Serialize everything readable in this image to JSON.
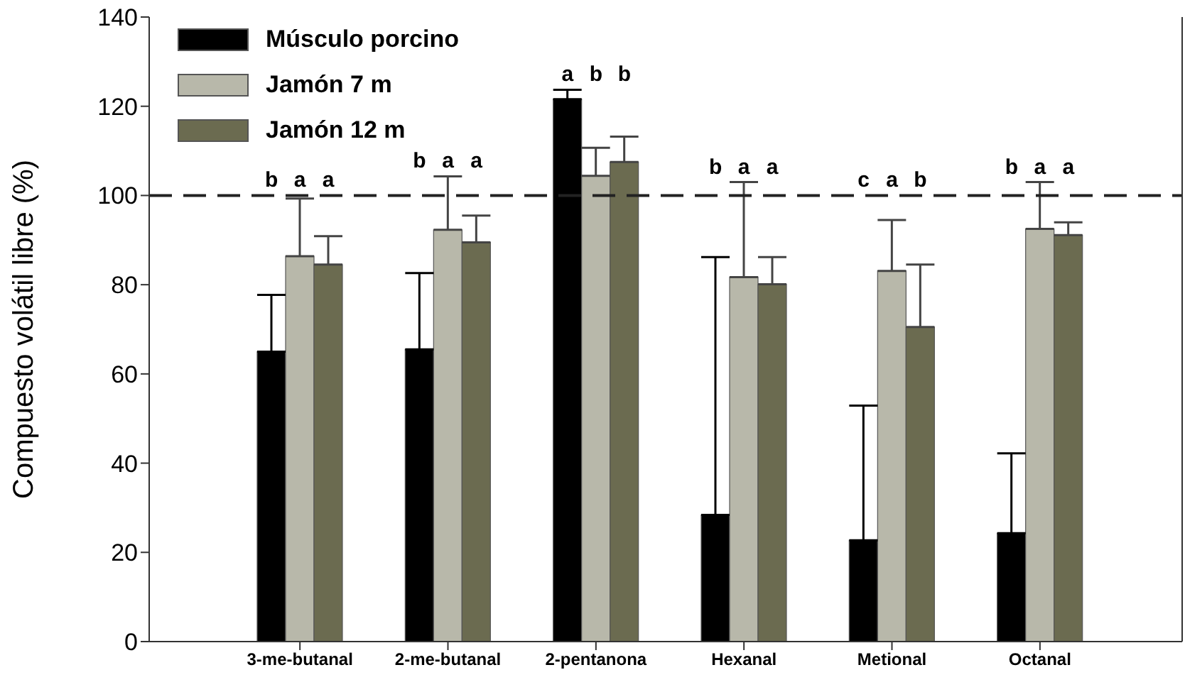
{
  "chart_data": {
    "type": "bar",
    "ylabel": "Compuesto volátil libre (%)",
    "categories": [
      "3-me-butanal",
      "2-me-butanal",
      "2-pentanona",
      "Hexanal",
      "Metional",
      "Octanal"
    ],
    "series": [
      {
        "name": "Músculo porcino",
        "color": "#000000",
        "values": [
          65,
          65.5,
          121.6,
          28.4,
          22.7,
          24.3
        ],
        "errors": [
          [
            65,
            77.7
          ],
          [
            65.5,
            82.6
          ],
          [
            121.6,
            123.7
          ],
          [
            28.4,
            86.2
          ],
          [
            22.7,
            52.9
          ],
          [
            24.3,
            42.2
          ]
        ]
      },
      {
        "name": "Jamón 7 m",
        "color": "#b8b8aa",
        "values": [
          86.4,
          92.3,
          104.4,
          81.7,
          83.1,
          92.5
        ],
        "errors": [
          [
            86.4,
            99.3
          ],
          [
            92.3,
            104.3
          ],
          [
            104.4,
            110.7
          ],
          [
            81.7,
            103
          ],
          [
            83.1,
            94.5
          ],
          [
            92.5,
            103
          ]
        ]
      },
      {
        "name": "Jamón 12 m",
        "color": "#6b6b50",
        "values": [
          84.5,
          89.5,
          107.5,
          80.1,
          70.5,
          91.1
        ],
        "errors": [
          [
            84.5,
            90.9
          ],
          [
            89.5,
            95.5
          ],
          [
            107.5,
            113.2
          ],
          [
            80.1,
            86.2
          ],
          [
            70.5,
            84.5
          ],
          [
            91.1,
            94
          ]
        ]
      }
    ],
    "ylim": [
      0,
      140
    ],
    "yticks": [
      0,
      20,
      40,
      60,
      80,
      100,
      120,
      140
    ],
    "grid": false,
    "legend": "top left",
    "ref_lines": [
      {
        "axis": "y",
        "value": 100,
        "line_style": "dashed"
      }
    ],
    "annotations": [
      "b",
      "a",
      "a",
      "b",
      "a",
      "a",
      "a",
      "b",
      "b",
      "b",
      "a",
      "a",
      "c",
      "a",
      "b",
      "b",
      "a",
      "a"
    ]
  }
}
